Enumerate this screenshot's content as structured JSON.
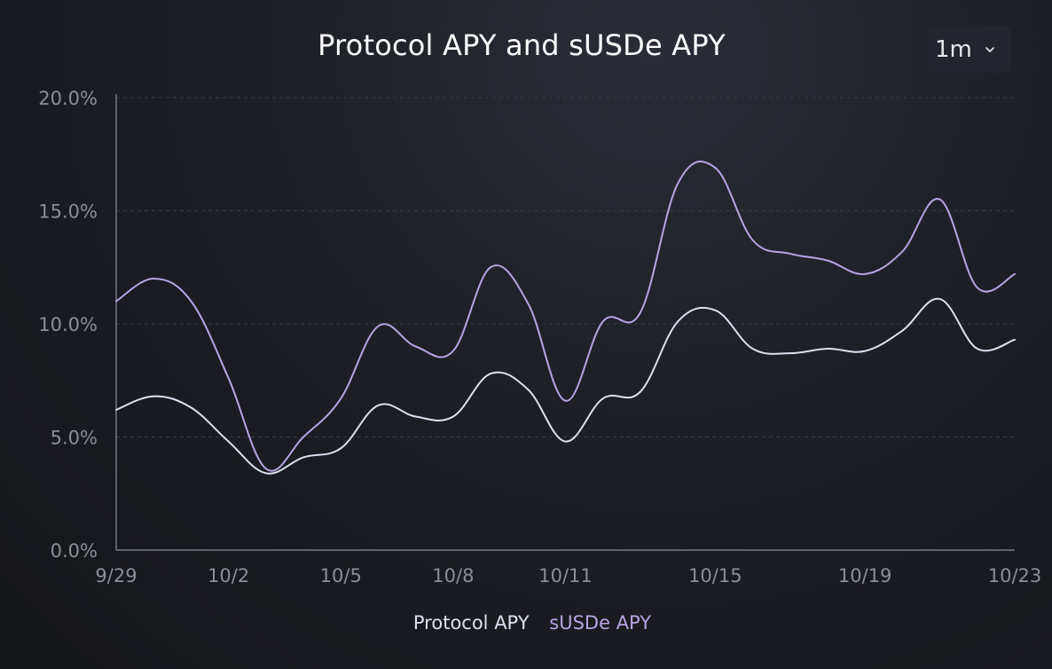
{
  "chart_data": {
    "type": "line",
    "title": "Protocol APY and sUSDe APY",
    "range_selector": "1m",
    "x_tick_labels": [
      "9/29",
      "10/2",
      "10/5",
      "10/8",
      "10/11",
      "10/15",
      "10/19",
      "10/23"
    ],
    "x": [
      "9/29",
      "9/30",
      "10/1",
      "10/2",
      "10/3",
      "10/4",
      "10/5",
      "10/6",
      "10/7",
      "10/8",
      "10/9",
      "10/10",
      "10/11",
      "10/12",
      "10/13",
      "10/14",
      "10/15",
      "10/16",
      "10/17",
      "10/18",
      "10/19",
      "10/20",
      "10/21",
      "10/22",
      "10/23"
    ],
    "y_tick_labels": [
      "0.0%",
      "5.0%",
      "10.0%",
      "15.0%",
      "20.0%"
    ],
    "ylim": [
      0,
      20
    ],
    "y_unit": "%",
    "grid": "horizontal dashed",
    "legend_position": "bottom",
    "series": [
      {
        "name": "Protocol APY",
        "color": "#dbe1ee",
        "values": [
          6.2,
          6.8,
          6.3,
          4.8,
          3.4,
          4.1,
          4.5,
          6.4,
          5.9,
          5.9,
          7.8,
          7.1,
          4.8,
          6.7,
          7.0,
          10.1,
          10.6,
          8.9,
          8.7,
          8.9,
          8.8,
          9.7,
          11.1,
          8.9,
          9.3
        ]
      },
      {
        "name": "sUSDe APY",
        "color": "#b9a3e4",
        "values": [
          11.0,
          12.0,
          11.0,
          7.6,
          3.6,
          5.0,
          6.7,
          9.9,
          9.0,
          8.8,
          12.5,
          10.9,
          6.6,
          10.1,
          10.5,
          16.2,
          16.9,
          13.7,
          13.1,
          12.8,
          12.2,
          13.2,
          15.5,
          11.6,
          12.2
        ]
      }
    ]
  },
  "legend": {
    "protocol": "Protocol APY",
    "susde": "sUSDe APY"
  },
  "icons": {
    "range_chevron": "chevron-down-icon"
  }
}
